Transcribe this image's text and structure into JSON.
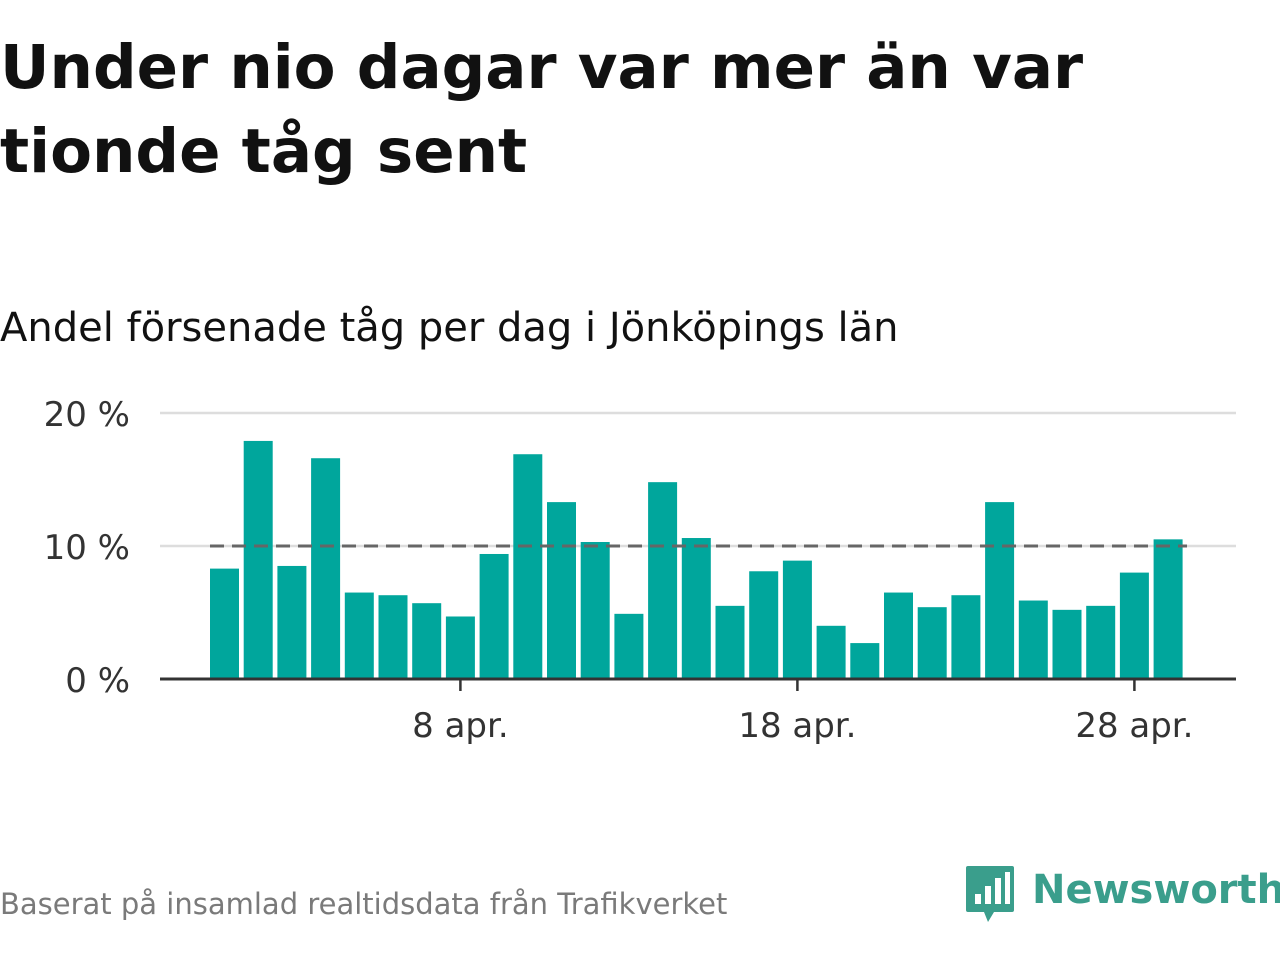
{
  "title": "Under nio dagar var mer än var tionde tåg sent",
  "subtitle": "Andel försenade tåg per dag i Jönköpings län",
  "footer": {
    "source": "Baserat på insamlad realtidsdata från Trafikverket",
    "brand": "Newsworthy",
    "brand_icon": "newsworthy-logo-icon"
  },
  "colors": {
    "bar": "#00a69c",
    "reference_line": "#666666",
    "grid": "#dddddd",
    "axis": "#333333",
    "brand": "#3a9e8c"
  },
  "chart_data": {
    "type": "bar",
    "x": [
      "1 apr.",
      "2 apr.",
      "3 apr.",
      "4 apr.",
      "5 apr.",
      "6 apr.",
      "7 apr.",
      "8 apr.",
      "9 apr.",
      "10 apr.",
      "11 apr.",
      "12 apr.",
      "13 apr.",
      "14 apr.",
      "15 apr.",
      "16 apr.",
      "17 apr.",
      "18 apr.",
      "19 apr.",
      "20 apr.",
      "21 apr.",
      "22 apr.",
      "23 apr.",
      "24 apr.",
      "25 apr.",
      "26 apr.",
      "27 apr.",
      "28 apr.",
      "29 apr.",
      "30 apr."
    ],
    "values": [
      8.3,
      17.9,
      8.5,
      16.6,
      6.5,
      6.3,
      5.7,
      4.7,
      9.4,
      16.9,
      13.3,
      10.3,
      4.9,
      14.8,
      10.6,
      5.5,
      8.1,
      8.9,
      4.0,
      2.7,
      6.5,
      5.4,
      6.3,
      13.3,
      5.9,
      5.2,
      5.5,
      8.0,
      10.5,
      0
    ],
    "reference_line": 10,
    "ylim": [
      0,
      20
    ],
    "y_ticks": [
      0,
      10,
      20
    ],
    "y_tick_labels": [
      "0 %",
      "10 %",
      "20 %"
    ],
    "x_ticks": [
      "8 apr.",
      "18 apr.",
      "28 apr."
    ],
    "xlabel": "",
    "ylabel": "",
    "grid": true,
    "legend": "none"
  }
}
